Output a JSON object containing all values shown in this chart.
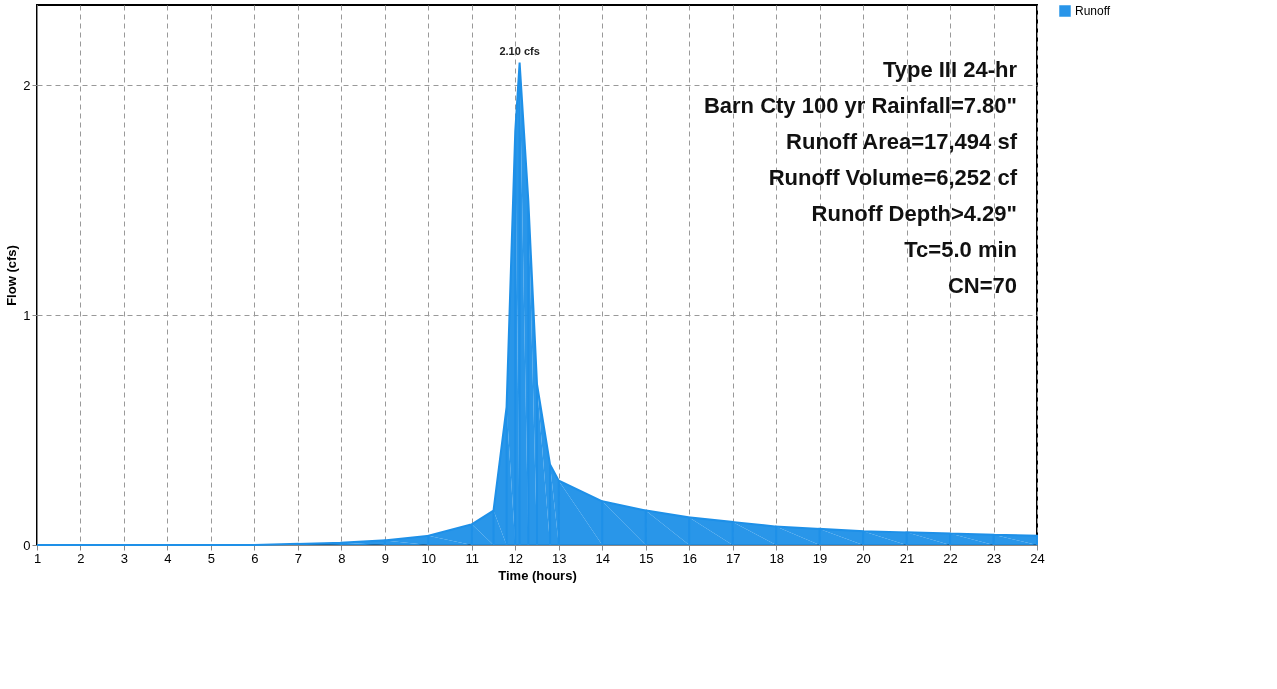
{
  "chart_data": {
    "type": "area",
    "xlabel": "Time  (hours)",
    "ylabel": "Flow  (cfs)",
    "x": [
      1,
      2,
      3,
      4,
      5,
      6,
      7,
      8,
      9,
      10,
      11,
      11.5,
      11.8,
      12.0,
      12.1,
      12.3,
      12.5,
      12.8,
      13,
      14,
      15,
      16,
      17,
      18,
      19,
      20,
      21,
      22,
      23,
      24
    ],
    "series": [
      {
        "name": "Runoff",
        "color": "#1e90e8",
        "values": [
          0,
          0,
          0,
          0,
          0,
          0,
          0.005,
          0.01,
          0.02,
          0.04,
          0.09,
          0.15,
          0.6,
          1.8,
          2.1,
          1.5,
          0.7,
          0.35,
          0.28,
          0.19,
          0.15,
          0.12,
          0.1,
          0.08,
          0.07,
          0.06,
          0.055,
          0.05,
          0.045,
          0.04
        ]
      }
    ],
    "xlim": [
      1,
      24
    ],
    "xticks": [
      1,
      2,
      3,
      4,
      5,
      6,
      7,
      8,
      9,
      10,
      11,
      12,
      13,
      14,
      15,
      16,
      17,
      18,
      19,
      20,
      21,
      22,
      23,
      24
    ],
    "ylim": [
      0,
      2.35
    ],
    "yticks": [
      0,
      1,
      2
    ],
    "grid": true,
    "legend": "top right",
    "annotations": [
      {
        "text": "2.10 cfs",
        "x": 12.1,
        "y": 2.1
      },
      "Type III 24-hr",
      "Barn Cty 100 yr Rainfall=7.80\"",
      "Runoff Area=17,494 sf",
      "Runoff Volume=6,252 cf",
      "Runoff Depth>4.29\"",
      "Tc=5.0 min",
      "CN=70"
    ]
  }
}
